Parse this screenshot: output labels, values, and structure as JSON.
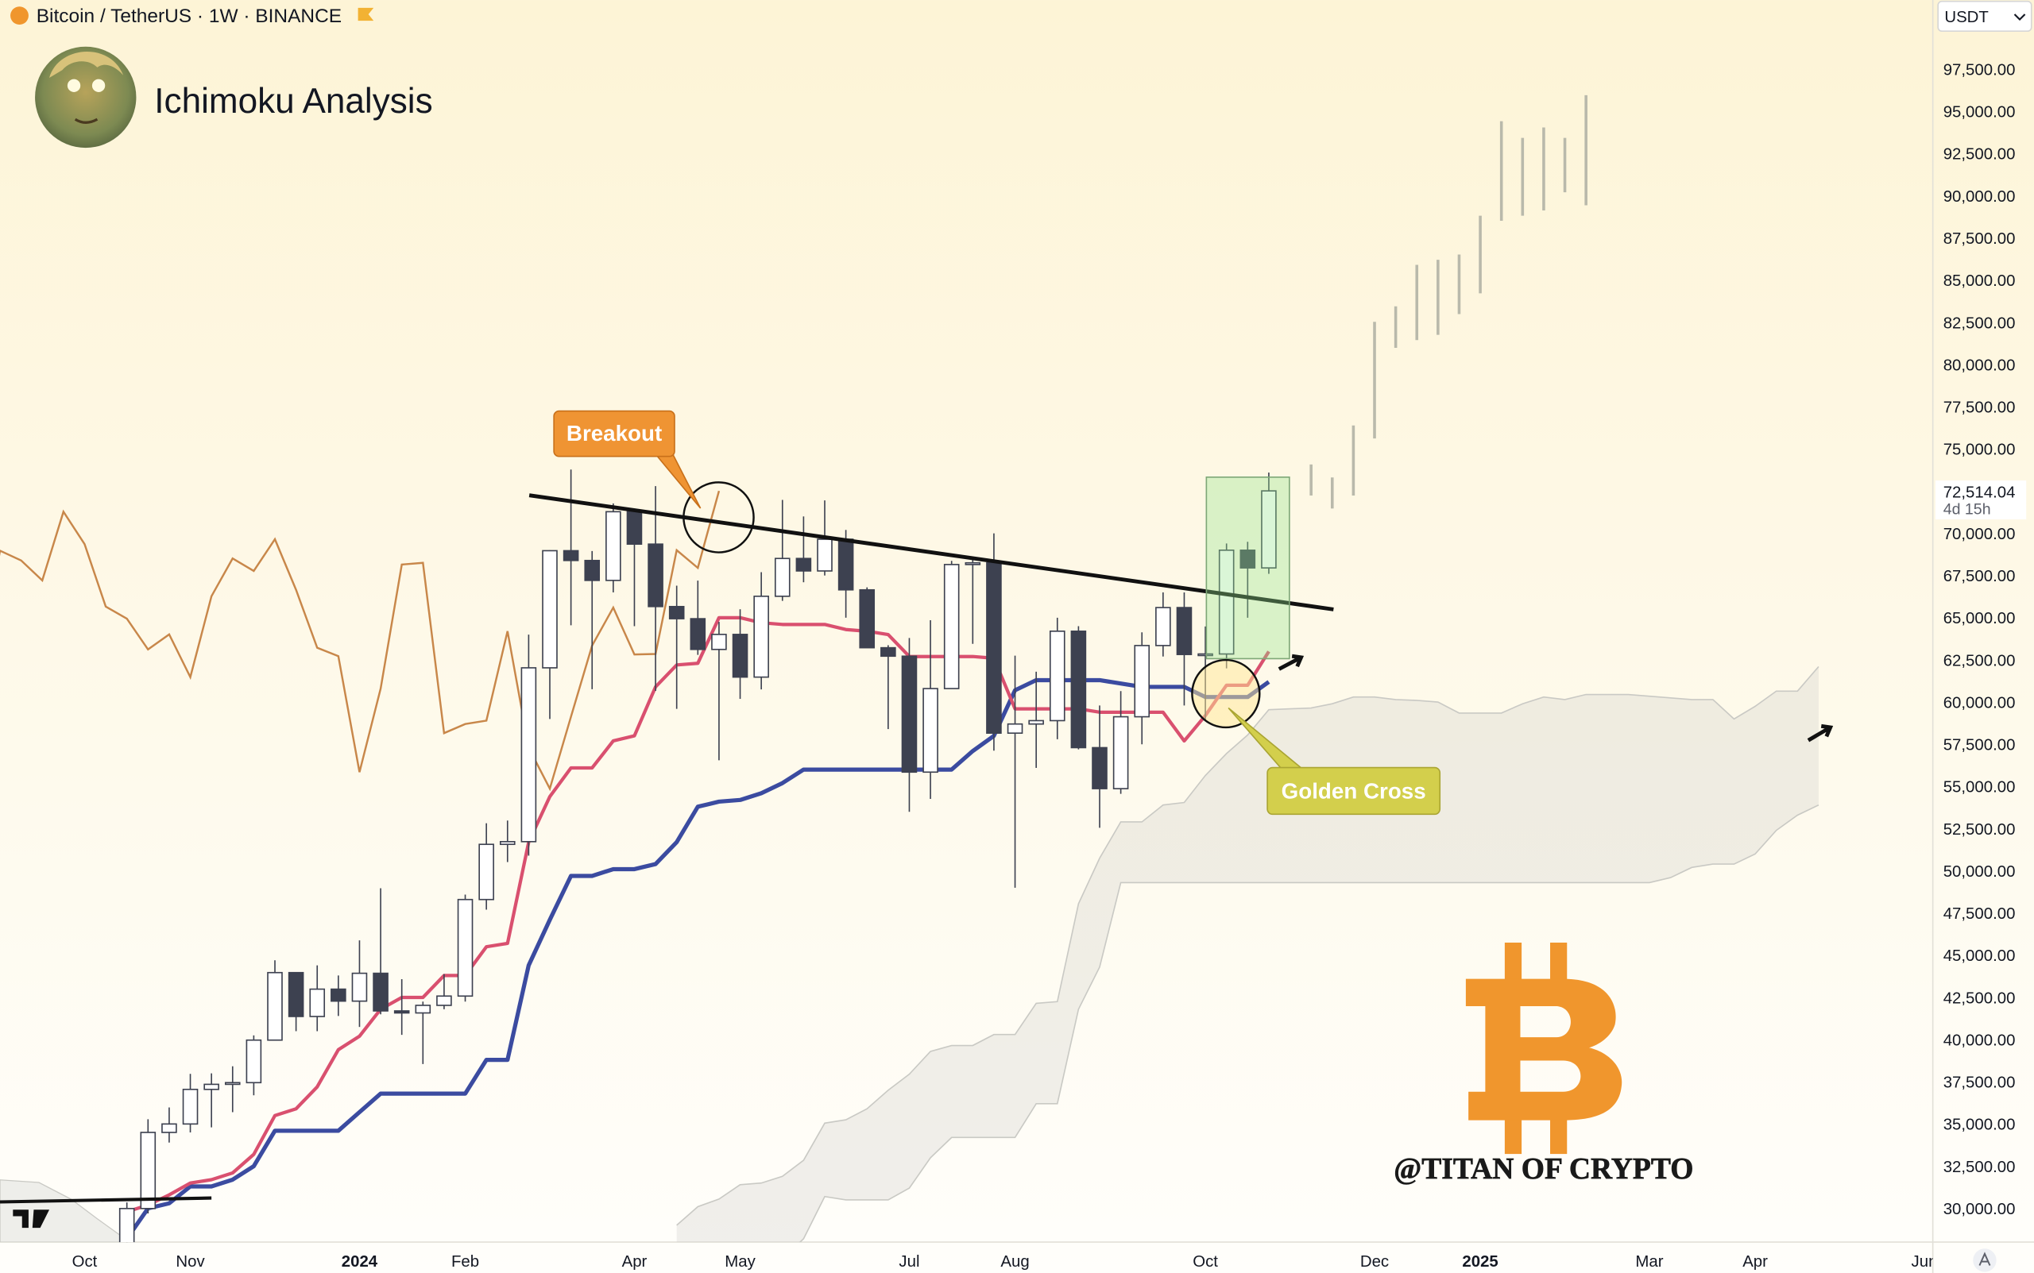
{
  "chart_data": {
    "type": "candlestick",
    "header": "Bitcoin / TetherUS · 1W · BINANCE",
    "title": "Ichimoku Analysis",
    "currency": "USDT",
    "up_color": "#ffffff",
    "down_color": "#3d4150",
    "open": [
      27150,
      29990,
      34500,
      35000,
      37050,
      37350,
      37450,
      39970,
      43970,
      41370,
      42990,
      42280,
      43930,
      41700,
      41580,
      42030,
      42580,
      48300,
      51570,
      51730,
      62030,
      68970,
      68390,
      67210,
      71280,
      69360,
      65660,
      64940,
      63120,
      64010,
      61480,
      66270,
      68510,
      67770,
      69650,
      66650,
      63220,
      62720,
      55850,
      60800,
      68150,
      68250,
      58160,
      58700,
      58900,
      64200,
      57300,
      54870,
      59130,
      63350,
      65600,
      62820,
      62850,
      69000,
      67950
    ],
    "high": [
      30350,
      35280,
      35980,
      37970,
      38000,
      38420,
      40250,
      44700,
      44000,
      44400,
      43800,
      45880,
      48970,
      43580,
      42250,
      43880,
      48590,
      52820,
      52980,
      64000,
      69000,
      73780,
      68950,
      71770,
      71340,
      72800,
      66900,
      67200,
      64750,
      65500,
      67700,
      71980,
      71000,
      71950,
      70200,
      66800,
      63370,
      63800,
      64850,
      68370,
      68490,
      70000,
      62750,
      61800,
      65000,
      64500,
      59800,
      60650,
      64130,
      66500,
      66500,
      64480,
      69400,
      69500,
      73600
    ],
    "low": [
      26950,
      29700,
      33900,
      34500,
      34800,
      35700,
      36700,
      39970,
      40500,
      40500,
      41400,
      40750,
      41500,
      40280,
      38550,
      41800,
      42250,
      47700,
      50520,
      50900,
      59000,
      64550,
      60760,
      66500,
      64500,
      60660,
      59600,
      62800,
      56550,
      60190,
      60750,
      66000,
      67100,
      67500,
      65000,
      63380,
      58400,
      53500,
      54260,
      60800,
      63450,
      57120,
      49000,
      56100,
      57800,
      57200,
      52550,
      54560,
      57500,
      62700,
      59800,
      58900,
      62000,
      65000,
      67600
    ],
    "close": [
      29990,
      34500,
      35000,
      37050,
      37350,
      37450,
      39970,
      43970,
      41370,
      42990,
      42280,
      43930,
      41700,
      41580,
      42030,
      42580,
      48300,
      51570,
      51730,
      62030,
      68970,
      68390,
      67210,
      71280,
      69360,
      65660,
      64940,
      63120,
      64010,
      61480,
      66270,
      68510,
      67770,
      69650,
      66650,
      63220,
      62720,
      55850,
      60800,
      68150,
      68250,
      58160,
      58700,
      58900,
      64200,
      57300,
      54870,
      59130,
      63350,
      65600,
      62820,
      62850,
      69000,
      67950,
      72514.04
    ],
    "tenkan": {
      "color": "#d9506f",
      "values": [
        29800,
        30200,
        30800,
        31500,
        31700,
        32100,
        33200,
        35500,
        35900,
        37200,
        39400,
        40200,
        41800,
        42500,
        42500,
        43800,
        43800,
        45500,
        45700,
        51700,
        54400,
        56100,
        56100,
        57700,
        58000,
        60900,
        62200,
        62300,
        65000,
        65000,
        64700,
        64600,
        64600,
        64600,
        64300,
        64200,
        64000,
        62700,
        62700,
        62700,
        62700,
        62600,
        59600,
        59600,
        59600,
        59600,
        59400,
        59400,
        59400,
        59400,
        57700,
        59200,
        61000,
        61000,
        63000
      ]
    },
    "kijun": {
      "color": "#3b4ba0",
      "values": [
        28200,
        30000,
        30300,
        31300,
        31300,
        31700,
        32500,
        34600,
        34600,
        34600,
        34600,
        35700,
        36800,
        36800,
        36800,
        36800,
        36800,
        38800,
        38800,
        44400,
        47100,
        49700,
        49700,
        50100,
        50100,
        50400,
        51700,
        53800,
        54100,
        54200,
        54600,
        55200,
        56000,
        56000,
        56000,
        56000,
        56000,
        56000,
        56000,
        56000,
        57100,
        58000,
        60700,
        61300,
        61300,
        61300,
        61300,
        61100,
        60900,
        60900,
        60900,
        60300,
        60300,
        60300,
        61200
      ]
    },
    "chikou": {
      "color": "#c8874a",
      "offset": -26
    },
    "cloud": {
      "color": "#c9c9c4",
      "offset": 26,
      "span_a": [
        29000,
        30100,
        30550,
        31400,
        31500,
        31900,
        32850,
        35050,
        35250,
        35900,
        37000,
        37950,
        39300,
        39650,
        39650,
        40300,
        40300,
        42150,
        42250,
        48050,
        50750,
        52900,
        52900,
        53900,
        54050,
        55650,
        56950,
        58050,
        59550,
        59600,
        59650,
        59900,
        60300,
        60300,
        60150,
        60100,
        60000,
        59350,
        59350,
        59350,
        59900,
        60300,
        60150,
        60450,
        60450,
        60450,
        60350,
        60250,
        60150,
        60150,
        59000,
        59750,
        60650,
        60650,
        62100
      ],
      "span_b": [
        23700,
        25400,
        25800,
        26700,
        26900,
        27000,
        28200,
        30700,
        30500,
        30500,
        30500,
        31200,
        33000,
        34200,
        34200,
        34200,
        34200,
        36200,
        36200,
        41800,
        44300,
        49300,
        49300,
        49300,
        49300,
        49300,
        49300,
        49300,
        49300,
        49300,
        49300,
        49300,
        49300,
        49300,
        49300,
        49300,
        49300,
        49300,
        49300,
        49300,
        49300,
        49300,
        49300,
        49300,
        49300,
        49300,
        49300,
        49600,
        50200,
        50400,
        50400,
        51000,
        52400,
        53300,
        53900
      ]
    },
    "projection": {
      "color": "#b9b9ab",
      "x": [
        56,
        57,
        58,
        59,
        60,
        61,
        62,
        63,
        64,
        65,
        66,
        67,
        68,
        69
      ],
      "high": [
        74080,
        73310,
        76390,
        82530,
        83450,
        85910,
        86210,
        86520,
        88820,
        94420,
        93430,
        94050,
        93430,
        95960
      ],
      "low": [
        72240,
        71470,
        72240,
        75620,
        80990,
        81450,
        81760,
        82990,
        84220,
        88520,
        88820,
        89130,
        90210,
        89440
      ]
    },
    "last_price": {
      "value": 72514.04,
      "label": "72,514.04",
      "countdown": "4d 15h"
    },
    "annotations": {
      "breakout": "Breakout",
      "golden_cross": "Golden Cross",
      "watermark": "@TITAN OF CRYPTO"
    },
    "grid": false,
    "xlim": [
      -6,
      85.4
    ],
    "xticks": [
      {
        "value": -2,
        "label": "Oct"
      },
      {
        "value": 3,
        "label": "Nov"
      },
      {
        "value": 11,
        "label": "2024"
      },
      {
        "value": 16,
        "label": "Feb"
      },
      {
        "value": 24,
        "label": "Apr"
      },
      {
        "value": 29,
        "label": "May"
      },
      {
        "value": 37,
        "label": "Jul"
      },
      {
        "value": 42,
        "label": "Aug"
      },
      {
        "value": 51,
        "label": "Oct"
      },
      {
        "value": 59,
        "label": "Dec"
      },
      {
        "value": 64,
        "label": "2025"
      },
      {
        "value": 72,
        "label": "Mar"
      },
      {
        "value": 77,
        "label": "Apr"
      },
      {
        "value": 85,
        "label": "Jun"
      }
    ],
    "ylim": [
      28000,
      101600
    ],
    "yticks": [
      {
        "value": 30000,
        "label": "30,000.00"
      },
      {
        "value": 32500,
        "label": "32,500.00"
      },
      {
        "value": 35000,
        "label": "35,000.00"
      },
      {
        "value": 37500,
        "label": "37,500.00"
      },
      {
        "value": 40000,
        "label": "40,000.00"
      },
      {
        "value": 42500,
        "label": "42,500.00"
      },
      {
        "value": 45000,
        "label": "45,000.00"
      },
      {
        "value": 47500,
        "label": "47,500.00"
      },
      {
        "value": 50000,
        "label": "50,000.00"
      },
      {
        "value": 52500,
        "label": "52,500.00"
      },
      {
        "value": 55000,
        "label": "55,000.00"
      },
      {
        "value": 57500,
        "label": "57,500.00"
      },
      {
        "value": 60000,
        "label": "60,000.00"
      },
      {
        "value": 62500,
        "label": "62,500.00"
      },
      {
        "value": 65000,
        "label": "65,000.00"
      },
      {
        "value": 67500,
        "label": "67,500.00"
      },
      {
        "value": 70000,
        "label": "70,000.00"
      },
      {
        "value": 75000,
        "label": "75,000.00"
      },
      {
        "value": 77500,
        "label": "77,500.00"
      },
      {
        "value": 80000,
        "label": "80,000.00"
      },
      {
        "value": 82500,
        "label": "82,500.00"
      },
      {
        "value": 85000,
        "label": "85,000.00"
      },
      {
        "value": 87500,
        "label": "87,500.00"
      },
      {
        "value": 90000,
        "label": "90,000.00"
      },
      {
        "value": 92500,
        "label": "92,500.00"
      },
      {
        "value": 95000,
        "label": "95,000.00"
      },
      {
        "value": 97500,
        "label": "97,500.00"
      }
    ]
  }
}
